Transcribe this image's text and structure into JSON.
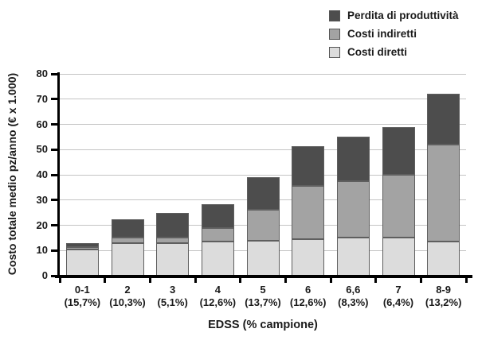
{
  "colors": {
    "productivity_loss": "#4d4d4d",
    "indirect_costs": "#a3a3a3",
    "direct_costs": "#dcdcdc",
    "bar_border": "#5f5f5f",
    "gridline": "#c4c4c4",
    "axis": "#000000"
  },
  "legend": {
    "items": [
      {
        "label": "Perdita di produttività",
        "color": "#4d4d4d"
      },
      {
        "label": "Costi indiretti",
        "color": "#a3a3a3"
      },
      {
        "label": "Costi diretti",
        "color": "#dcdcdc"
      }
    ]
  },
  "chart_data": {
    "type": "bar",
    "stacked": true,
    "title": "",
    "xlabel": "EDSS (% campione)",
    "ylabel": "Costo totale medio pz/anno (€ x 1.000)",
    "ylim": [
      0,
      80
    ],
    "yticks": [
      0,
      10,
      20,
      30,
      40,
      50,
      60,
      70,
      80
    ],
    "grid": true,
    "legend_position": "top-right",
    "categories": [
      "0-1",
      "2",
      "3",
      "4",
      "5",
      "6",
      "6,6",
      "7",
      "8-9"
    ],
    "category_sublabels": [
      "(15,7%)",
      "(10,3%)",
      "(5,1%)",
      "(12,6%)",
      "(13,7%)",
      "(12,6%)",
      "(8,3%)",
      "(6,4%)",
      "(13,2%)"
    ],
    "series": [
      {
        "name": "Costi diretti",
        "color": "#dcdcdc",
        "values": [
          10.5,
          13.0,
          13.0,
          13.5,
          14.0,
          14.5,
          15.0,
          15.0,
          13.5
        ]
      },
      {
        "name": "Costi indiretti",
        "color": "#a3a3a3",
        "values": [
          1.0,
          2.0,
          2.0,
          5.5,
          12.0,
          21.0,
          22.5,
          25.0,
          38.5
        ]
      },
      {
        "name": "Perdita di produttività",
        "color": "#4d4d4d",
        "values": [
          1.5,
          7.5,
          10.0,
          9.5,
          13.0,
          16.0,
          17.5,
          19.0,
          20.0
        ]
      }
    ],
    "totals": [
      13.0,
      22.5,
      25.0,
      28.5,
      39.0,
      51.5,
      55.0,
      59.0,
      72.0
    ]
  }
}
